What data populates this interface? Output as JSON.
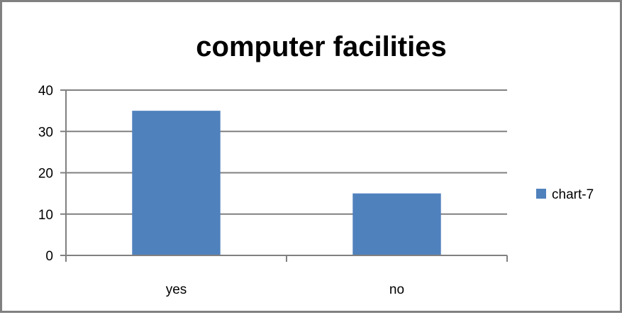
{
  "chart_data": {
    "type": "bar",
    "title": "computer facilities",
    "xlabel": "",
    "ylabel": "",
    "categories": [
      "yes",
      "no"
    ],
    "series": [
      {
        "name": "chart-7",
        "values": [
          35,
          15
        ],
        "color": "#4f81bd"
      }
    ],
    "ylim": [
      0,
      40
    ],
    "yticks": [
      0,
      10,
      20,
      30,
      40
    ],
    "grid": true,
    "legend": "right"
  }
}
